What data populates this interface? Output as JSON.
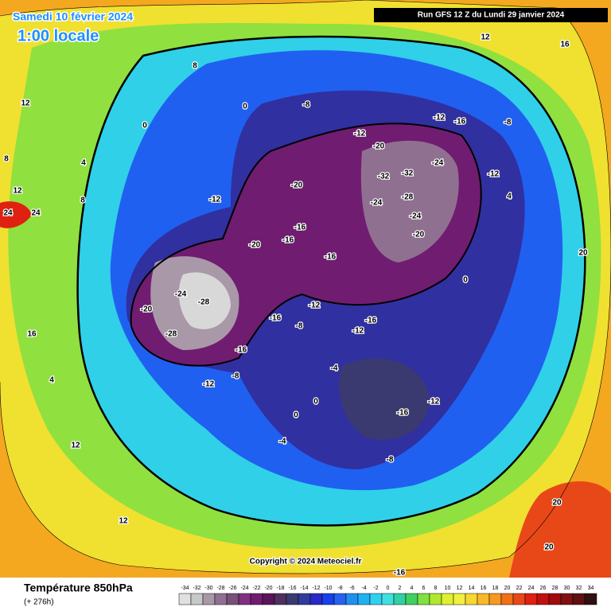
{
  "header": {
    "date": "Samedi 10 février 2024",
    "time": "1:00 locale",
    "run": "Run GFS 12 Z du Lundi 29 janvier 2024"
  },
  "footer": {
    "copyright": "Copyright © 2024 Meteociel.fr"
  },
  "legend": {
    "title": "Température 850hPa",
    "subtitle": "(+ 276h)",
    "levels": [
      -34,
      -32,
      -30,
      -28,
      -26,
      -24,
      -22,
      -20,
      -18,
      -16,
      -14,
      -12,
      -10,
      -8,
      -6,
      -4,
      -2,
      0,
      2,
      4,
      6,
      8,
      10,
      12,
      14,
      16,
      18,
      20,
      22,
      24,
      26,
      28,
      30,
      32,
      34
    ],
    "colors": [
      "#e0e0e0",
      "#c8c8c8",
      "#a898a8",
      "#907090",
      "#785078",
      "#803080",
      "#701c70",
      "#5a145a",
      "#503060",
      "#3a3a70",
      "#303c9a",
      "#2828c8",
      "#1840e8",
      "#2860f0",
      "#2090f0",
      "#20b0f0",
      "#30d0f0",
      "#40e0e0",
      "#30d0a0",
      "#40d060",
      "#80e040",
      "#b0e830",
      "#e0f030",
      "#f0f040",
      "#f8d830",
      "#f8b828",
      "#f89820",
      "#f07018",
      "#e84818",
      "#e02010",
      "#c01010",
      "#a00c0c",
      "#801010",
      "#601010",
      "#301010"
    ]
  },
  "map": {
    "labels": [
      16,
      12,
      8,
      12,
      8,
      4,
      0,
      0,
      -8,
      -12,
      -16,
      -8,
      -12,
      -20,
      -24,
      -20,
      -32,
      -32,
      -28,
      -24,
      -24,
      -20,
      -16,
      -12,
      -16,
      -20,
      -16,
      -24,
      -28,
      -28,
      -20,
      -12,
      -16,
      -12,
      -8,
      -16,
      -16,
      -16,
      -12,
      -8,
      -4,
      0,
      0,
      4,
      -8,
      -12,
      -12,
      4,
      8,
      12,
      16,
      12,
      12,
      20,
      20,
      20,
      24,
      24,
      -16,
      16,
      0,
      -4
    ]
  }
}
